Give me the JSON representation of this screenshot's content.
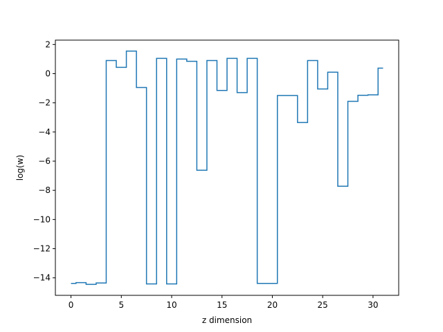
{
  "chart_data": {
    "type": "line",
    "drawstyle": "steps-mid",
    "xlabel": "z dimension",
    "ylabel": "log(w)",
    "xlim": [
      -1.55,
      32.55
    ],
    "ylim": [
      -15.2,
      2.3
    ],
    "xticks": [
      0,
      5,
      10,
      15,
      20,
      25,
      30
    ],
    "yticks": [
      -14,
      -12,
      -10,
      -8,
      -6,
      -4,
      -2,
      0,
      2
    ],
    "grid": false,
    "series_color": "#1f77b4",
    "series": [
      {
        "x": [
          0,
          1,
          2,
          3,
          4,
          5,
          6,
          7,
          8,
          9,
          10,
          11,
          12,
          13,
          14,
          15,
          16,
          17,
          18,
          19,
          20,
          21,
          22,
          23,
          24,
          25,
          26,
          27,
          28,
          29,
          30,
          31
        ],
        "values": [
          -14.38,
          -14.33,
          -14.45,
          -14.35,
          0.9,
          0.43,
          1.55,
          -0.95,
          -14.42,
          1.05,
          -14.42,
          1.0,
          0.85,
          -6.62,
          0.9,
          -1.15,
          1.05,
          -1.3,
          1.05,
          -14.38,
          -14.38,
          -1.5,
          -1.5,
          -3.35,
          0.9,
          -1.05,
          0.1,
          -7.72,
          -1.9,
          -1.48,
          -1.45,
          0.38
        ]
      }
    ]
  }
}
